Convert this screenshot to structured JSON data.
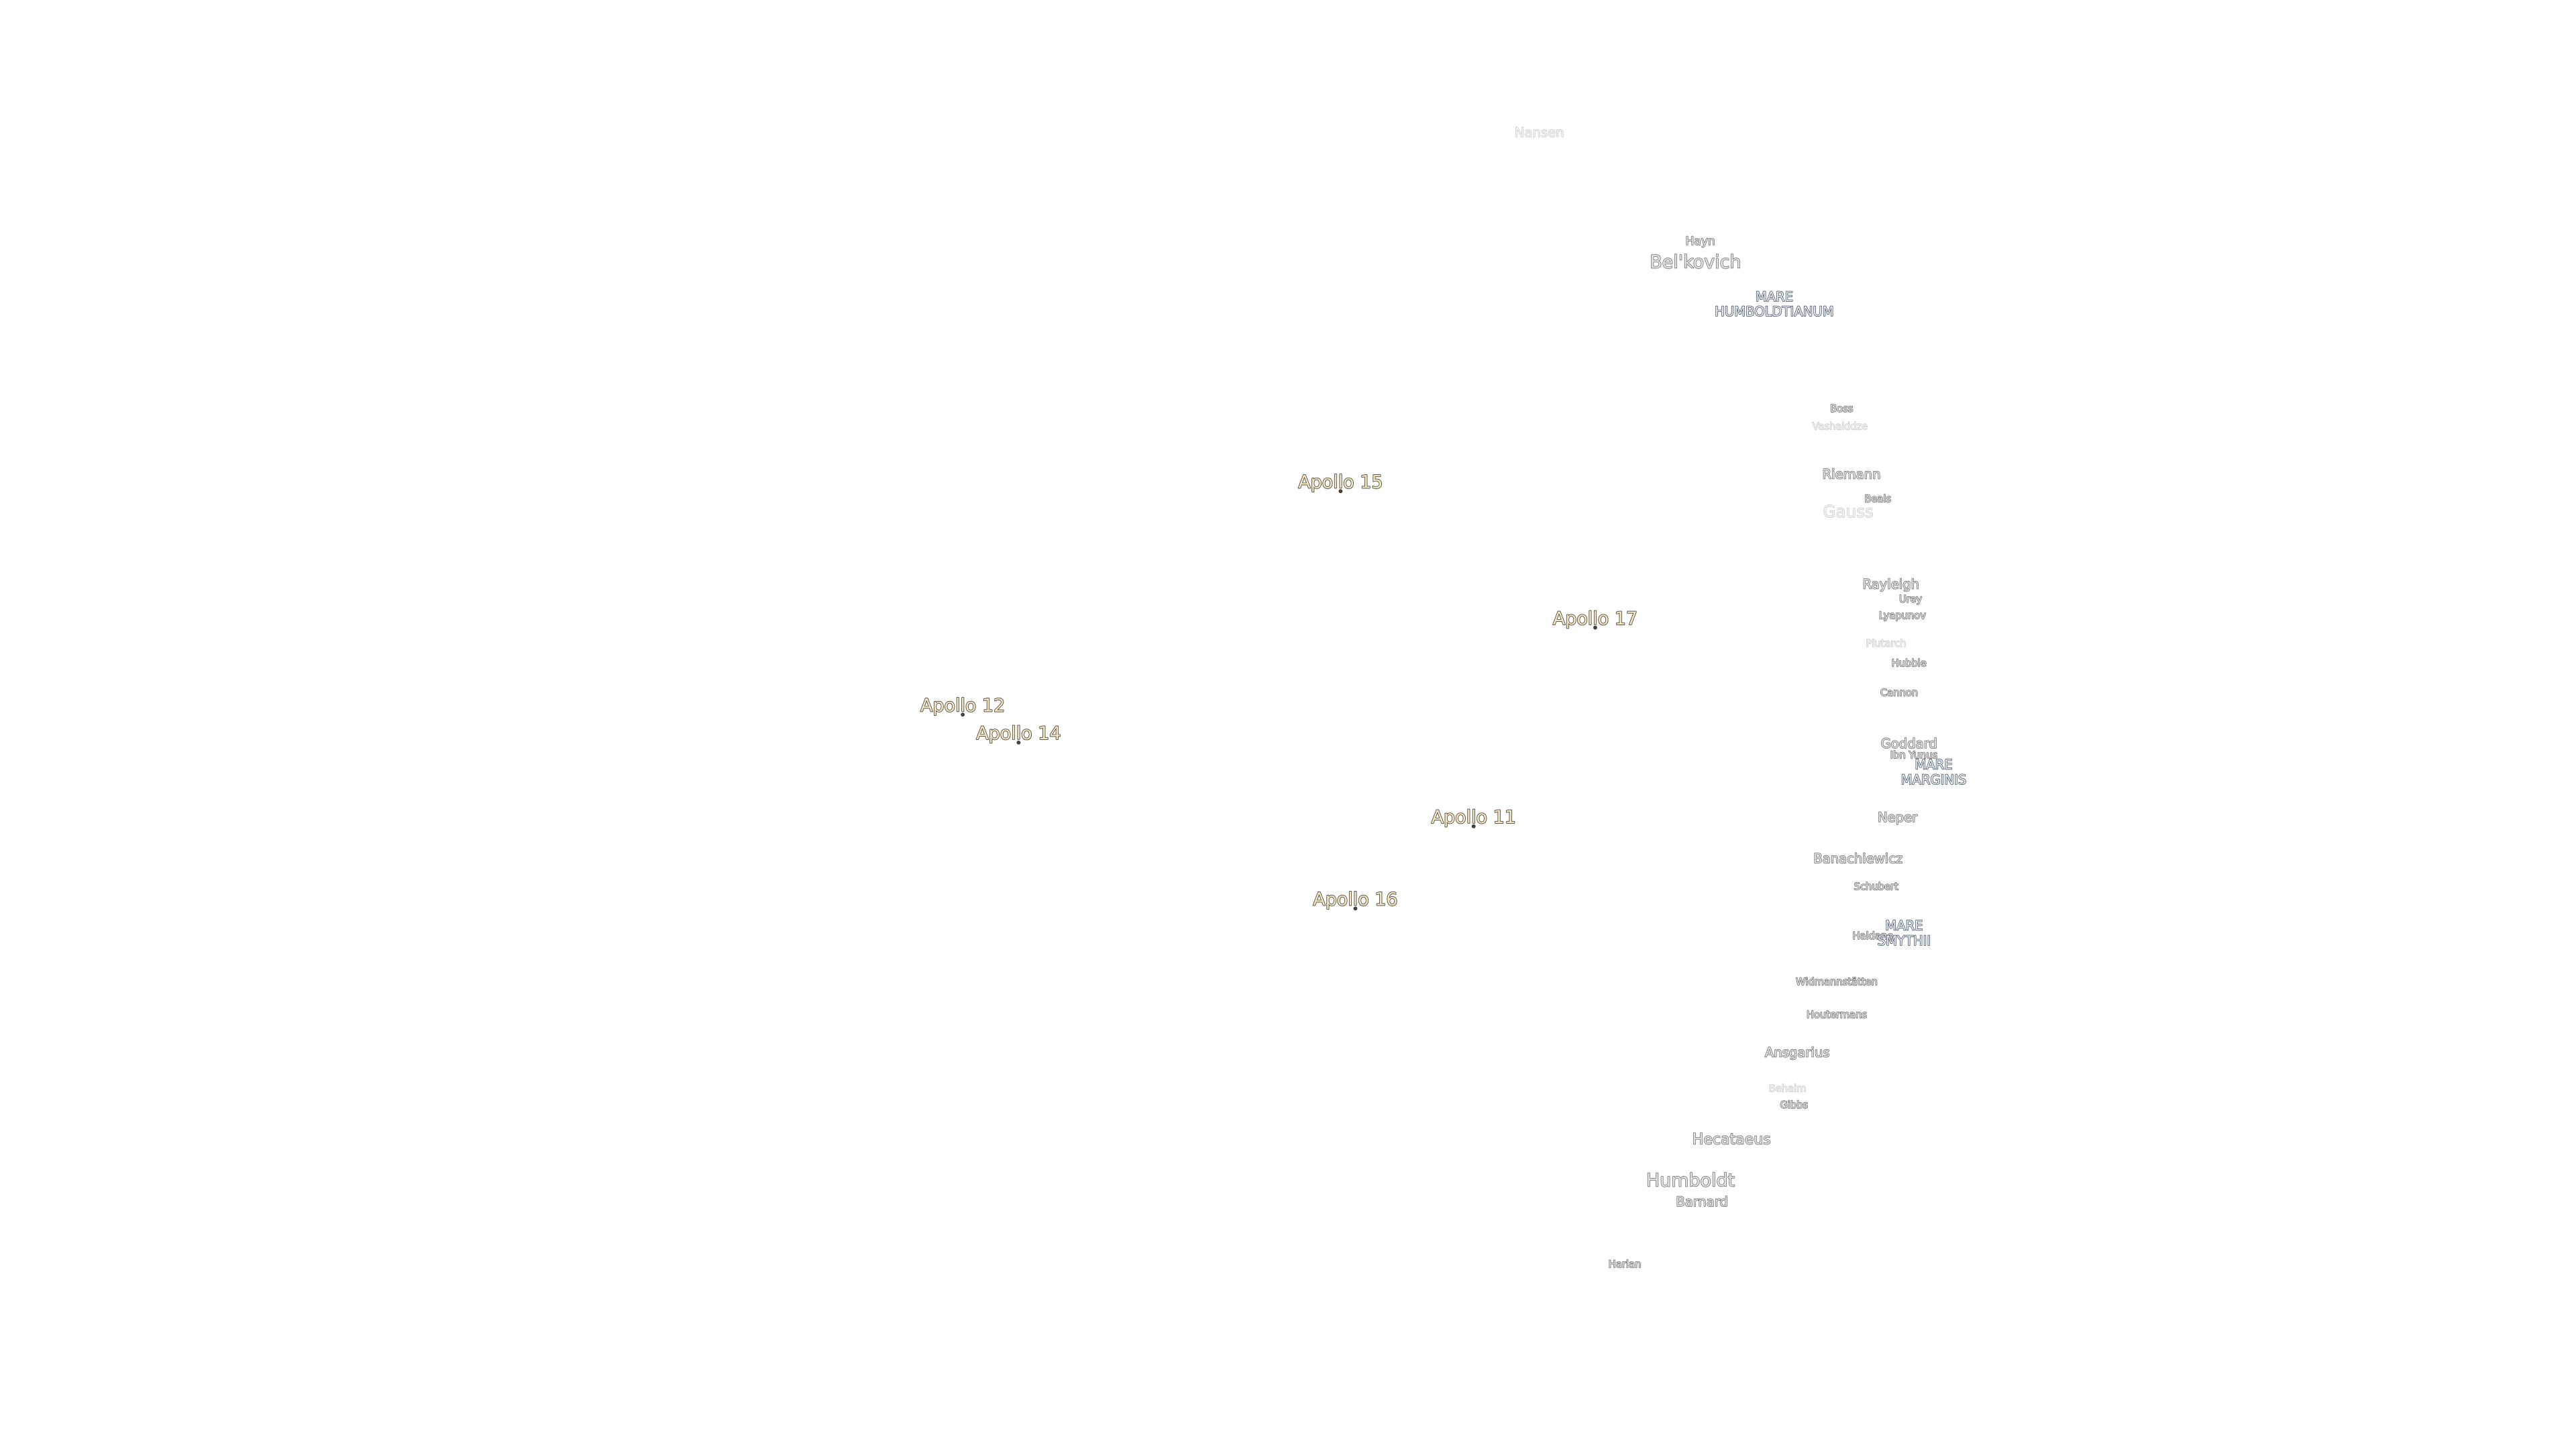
{
  "apollo_sites": [
    {
      "label": "Apollo 15"
    },
    {
      "label": "Apollo 17"
    },
    {
      "label": "Apollo 12"
    },
    {
      "label": "Apollo 14"
    },
    {
      "label": "Apollo 11"
    },
    {
      "label": "Apollo 16"
    }
  ],
  "craters": [
    {
      "label": "Nansen"
    },
    {
      "label": "Hayn"
    },
    {
      "label": "Bel'kovich"
    },
    {
      "label": "Boss"
    },
    {
      "label": "Vashakidze"
    },
    {
      "label": "Riemann"
    },
    {
      "label": "Gauss"
    },
    {
      "label": "Beals"
    },
    {
      "label": "Rayleigh"
    },
    {
      "label": "Urey"
    },
    {
      "label": "Lyapunov"
    },
    {
      "label": "Plutarch"
    },
    {
      "label": "Hubble"
    },
    {
      "label": "Cannon"
    },
    {
      "label": "Goddard"
    },
    {
      "label": "Ibn Yunus"
    },
    {
      "label": "Neper"
    },
    {
      "label": "Banachiewicz"
    },
    {
      "label": "Schubert"
    },
    {
      "label": "Haldane"
    },
    {
      "label": "Widmannstätten"
    },
    {
      "label": "Houtermans"
    },
    {
      "label": "Ansgarius"
    },
    {
      "label": "Behaim"
    },
    {
      "label": "Gibbs"
    },
    {
      "label": "Hecataeus"
    },
    {
      "label": "Humboldt"
    },
    {
      "label": "Barnard"
    },
    {
      "label": "Harlan"
    }
  ],
  "maria": [
    {
      "lines": [
        "MARE",
        "HUMBOLDTIANUM"
      ]
    },
    {
      "lines": [
        "MARE",
        "MARGINIS"
      ]
    },
    {
      "lines": [
        "MARE",
        "SMYTHII"
      ]
    }
  ]
}
